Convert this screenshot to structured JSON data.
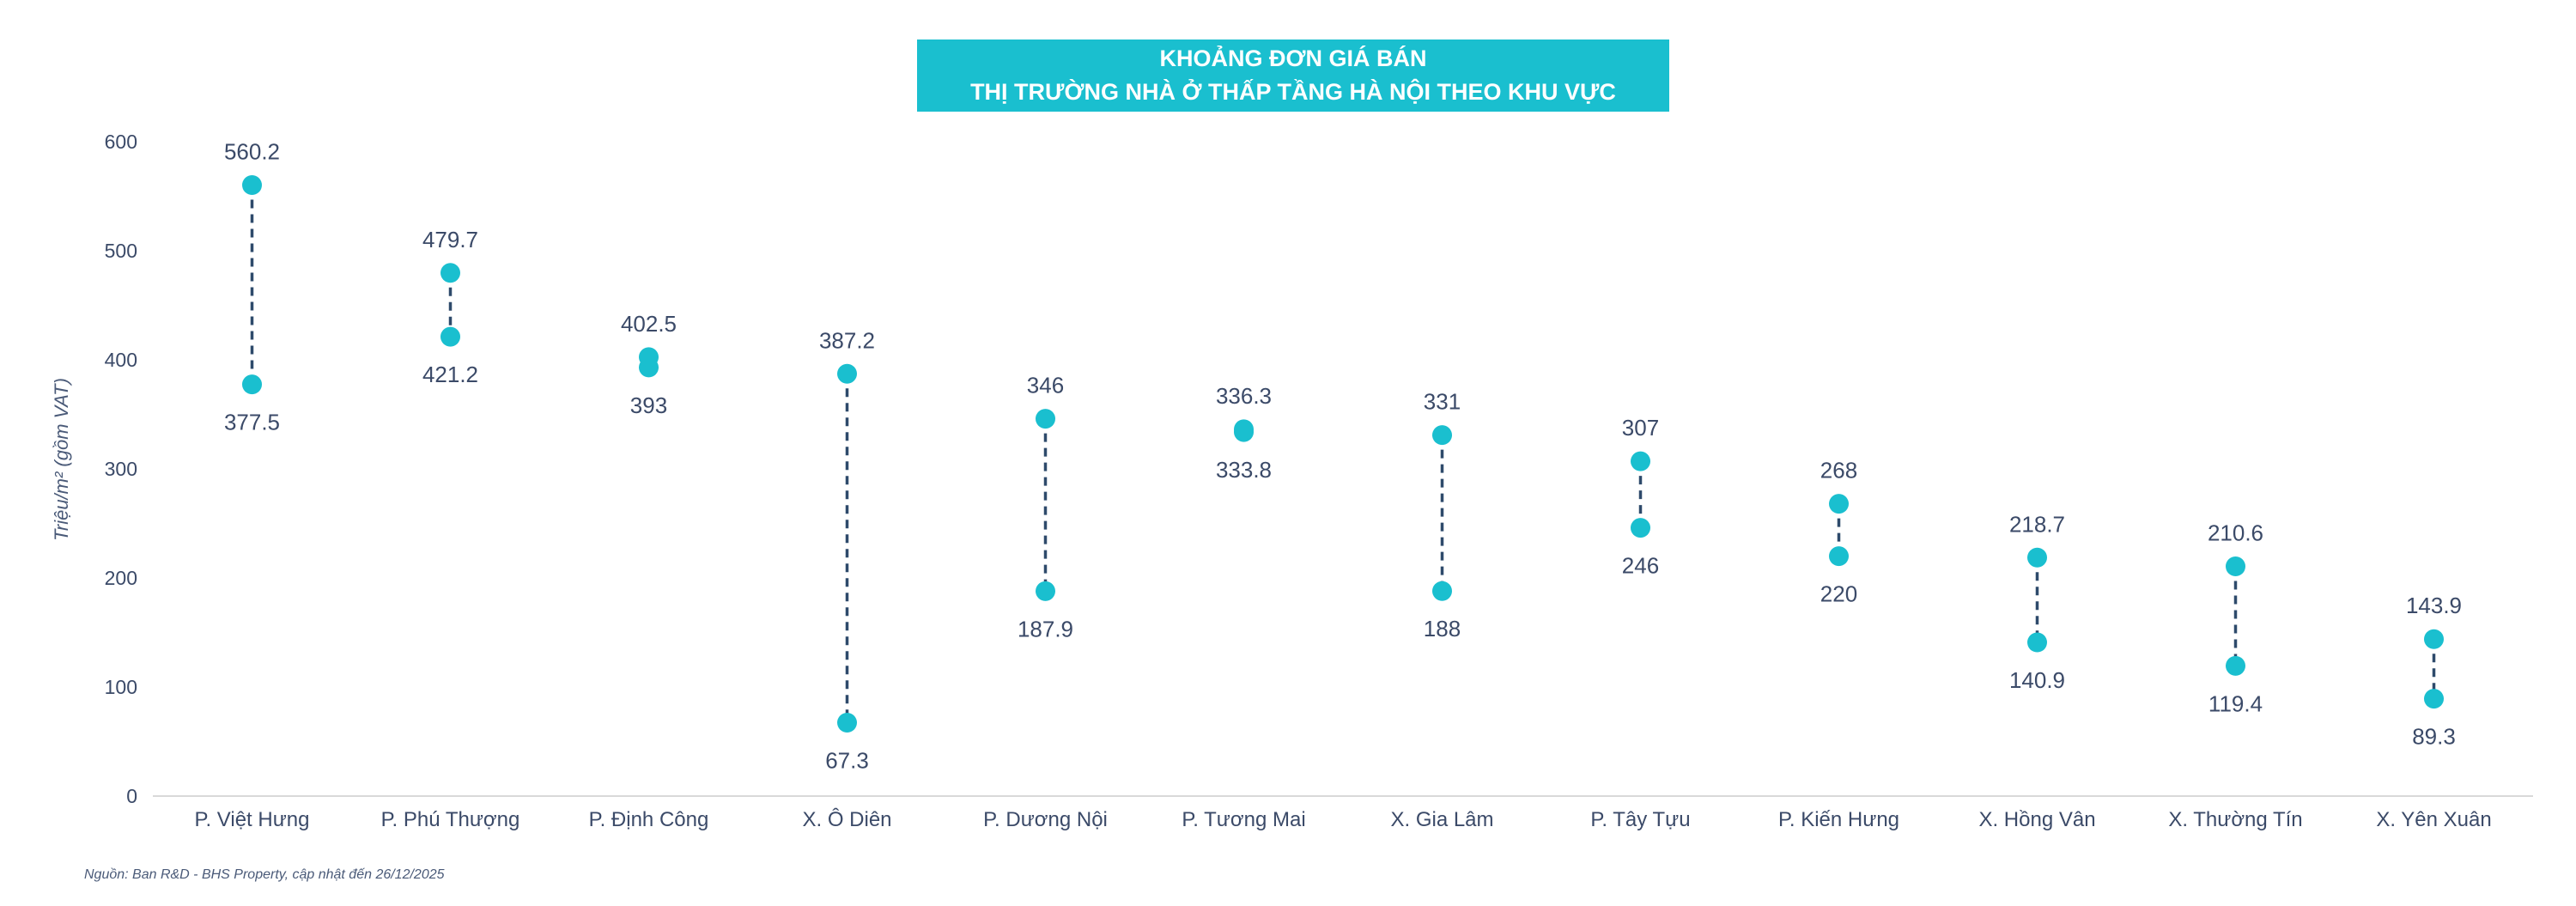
{
  "chart_data": {
    "type": "dumbbell",
    "title_lines": [
      "KHOẢNG ĐƠN GIÁ BÁN",
      "THỊ TRƯỜNG NHÀ Ở THẤP TẦNG HÀ NỘI THEO KHU VỰC"
    ],
    "ylabel": "Triệu/m² (gồm VAT)",
    "ylim": [
      0,
      600
    ],
    "yticks": [
      0,
      100,
      200,
      300,
      400,
      500,
      600
    ],
    "grid": false,
    "categories": [
      "P. Việt Hưng",
      "P. Phú Thượng",
      "P. Định Công",
      "X. Ô Diên",
      "P. Dương Nội",
      "P. Tương Mai",
      "X. Gia Lâm",
      "P. Tây Tựu",
      "P. Kiến Hưng",
      "X. Hồng Vân",
      "X. Thường Tín",
      "X. Yên Xuân"
    ],
    "high": [
      560.2,
      479.7,
      402.5,
      387.2,
      346,
      336.3,
      331,
      307,
      268,
      218.7,
      210.6,
      143.9
    ],
    "low": [
      377.5,
      421.2,
      393,
      67.3,
      187.9,
      333.8,
      188,
      246,
      220,
      140.9,
      119.4,
      89.3
    ],
    "high_labels": [
      "560.2",
      "479.7",
      "402.5",
      "387.2",
      "346",
      "336.3",
      "331",
      "307",
      "268",
      "218.7",
      "210.6",
      "143.9"
    ],
    "low_labels": [
      "377.5",
      "421.2",
      "393",
      "67.3",
      "187.9",
      "333.8",
      "188",
      "246",
      "220",
      "140.9",
      "119.4",
      "89.3"
    ],
    "colors": {
      "marker": "#1ABFCF",
      "connector": "#2E4A6B",
      "title_bg": "#1ABFCF",
      "text": "#3B4A68"
    }
  },
  "source_note": "Nguồn: Ban R&D - BHS Property, cập nhật đến 26/12/2025"
}
